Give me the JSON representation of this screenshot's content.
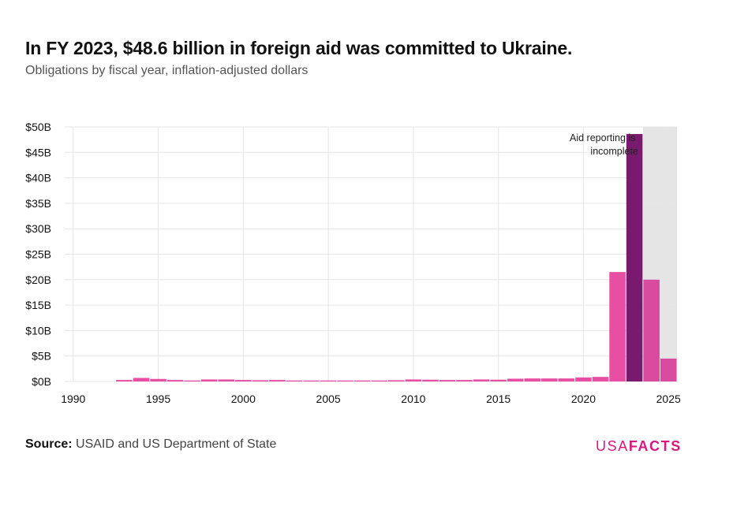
{
  "title": "In FY 2023, $48.6 billion in foreign aid was committed to Ukraine.",
  "subtitle": "Obligations by fiscal year, inflation-adjusted dollars",
  "source_label": "Source:",
  "source_text": "USAID and US Department of State",
  "logo": {
    "part1": "USA",
    "part2": "FACTS"
  },
  "colors": {
    "bar": "#e84fa3",
    "highlight": "#7a1a6f",
    "incomplete_bar": "#d94b9e",
    "shade": "#e5e5e5",
    "grid": "#e6e6e6",
    "logo": "#d6197f"
  },
  "chart_data": {
    "type": "bar",
    "title": "In FY 2023, $48.6 billion in foreign aid was committed to Ukraine.",
    "subtitle": "Obligations by fiscal year, inflation-adjusted dollars",
    "xlabel": "",
    "ylabel": "",
    "x_ticks": [
      "1990",
      "1995",
      "2000",
      "2005",
      "2010",
      "2015",
      "2020",
      "2025"
    ],
    "y_ticks": [
      "$0B",
      "$5B",
      "$10B",
      "$15B",
      "$20B",
      "$25B",
      "$30B",
      "$35B",
      "$40B",
      "$45B",
      "$50B"
    ],
    "xlim": [
      1989.5,
      2025.5
    ],
    "ylim": [
      0,
      50
    ],
    "grid": true,
    "units": "billions of dollars",
    "highlight_year": 2023,
    "incomplete_from_year": 2024,
    "annotation": "Aid reporting is incomplete",
    "series": [
      {
        "x": [
          1990,
          1991,
          1992,
          1993,
          1994,
          1995,
          1996,
          1997,
          1998,
          1999,
          2000,
          2001,
          2002,
          2003,
          2004,
          2005,
          2006,
          2007,
          2008,
          2009,
          2010,
          2011,
          2012,
          2013,
          2014,
          2015,
          2016,
          2017,
          2018,
          2019,
          2020,
          2021,
          2022,
          2023,
          2024,
          2025
        ],
        "values": [
          0,
          0,
          0,
          0.3,
          0.7,
          0.5,
          0.3,
          0.2,
          0.4,
          0.4,
          0.3,
          0.25,
          0.3,
          0.2,
          0.2,
          0.2,
          0.2,
          0.2,
          0.2,
          0.25,
          0.4,
          0.35,
          0.3,
          0.3,
          0.4,
          0.35,
          0.55,
          0.6,
          0.6,
          0.6,
          0.8,
          0.9,
          21.5,
          48.6,
          20.0,
          4.5
        ]
      }
    ]
  }
}
